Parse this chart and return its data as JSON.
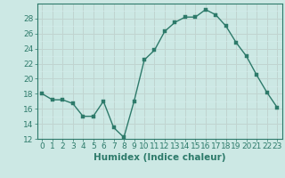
{
  "x": [
    0,
    1,
    2,
    3,
    4,
    5,
    6,
    7,
    8,
    9,
    10,
    11,
    12,
    13,
    14,
    15,
    16,
    17,
    18,
    19,
    20,
    21,
    22,
    23
  ],
  "y": [
    18,
    17.2,
    17.2,
    16.7,
    15,
    15,
    17,
    13.5,
    12.2,
    17,
    22.5,
    23.8,
    26.3,
    27.5,
    28.2,
    28.2,
    29.2,
    28.5,
    27,
    24.8,
    23,
    20.5,
    18.2,
    16.2
  ],
  "line_color": "#2d7a6a",
  "marker_color": "#2d7a6a",
  "bg_color": "#cce8e4",
  "grid_color_major": "#c0d8d4",
  "grid_color_minor": "#d8eceb",
  "xlabel": "Humidex (Indice chaleur)",
  "ylim": [
    12,
    30
  ],
  "xlim": [
    -0.5,
    23.5
  ],
  "yticks": [
    12,
    14,
    16,
    18,
    20,
    22,
    24,
    26,
    28
  ],
  "xticks": [
    0,
    1,
    2,
    3,
    4,
    5,
    6,
    7,
    8,
    9,
    10,
    11,
    12,
    13,
    14,
    15,
    16,
    17,
    18,
    19,
    20,
    21,
    22,
    23
  ],
  "xlabel_fontsize": 7.5,
  "tick_fontsize": 6.5,
  "line_width": 1.0,
  "marker_size": 2.5
}
